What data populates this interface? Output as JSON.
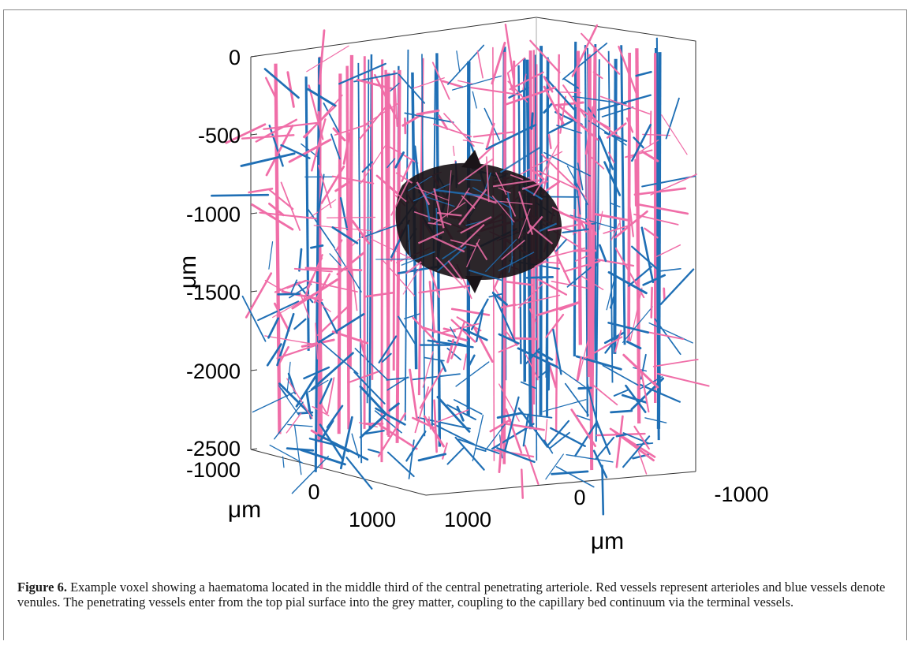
{
  "figure": {
    "label": "Figure 6.",
    "caption": " Example voxel showing a haematoma located in the middle third of the central penetrating arteriole. Red vessels represent arterioles and blue vessels denote venules. The penetrating vessels enter from the top pial surface into the grey matter, coupling to the capillary bed continuum via the terminal vessels."
  },
  "chart_data": {
    "type": "3d-line",
    "series": [
      {
        "name": "arterioles",
        "color": "#f06ea8"
      },
      {
        "name": "venules",
        "color": "#1f6fb5"
      }
    ],
    "haematoma_color": "#1a1418",
    "z_axis": {
      "label": "μm",
      "ticks": [
        "0",
        "-500",
        "-1000",
        "-1500",
        "-2000",
        "-2500"
      ],
      "range": [
        -2500,
        0
      ]
    },
    "x_axis": {
      "label": "μm",
      "ticks": [
        "1000",
        "0",
        "-1000"
      ],
      "range": [
        -1000,
        1000
      ]
    },
    "y_axis": {
      "label": "μm",
      "ticks": [
        "-1000",
        "0",
        "1000"
      ],
      "range": [
        -1000,
        1000
      ]
    },
    "grid": false
  }
}
